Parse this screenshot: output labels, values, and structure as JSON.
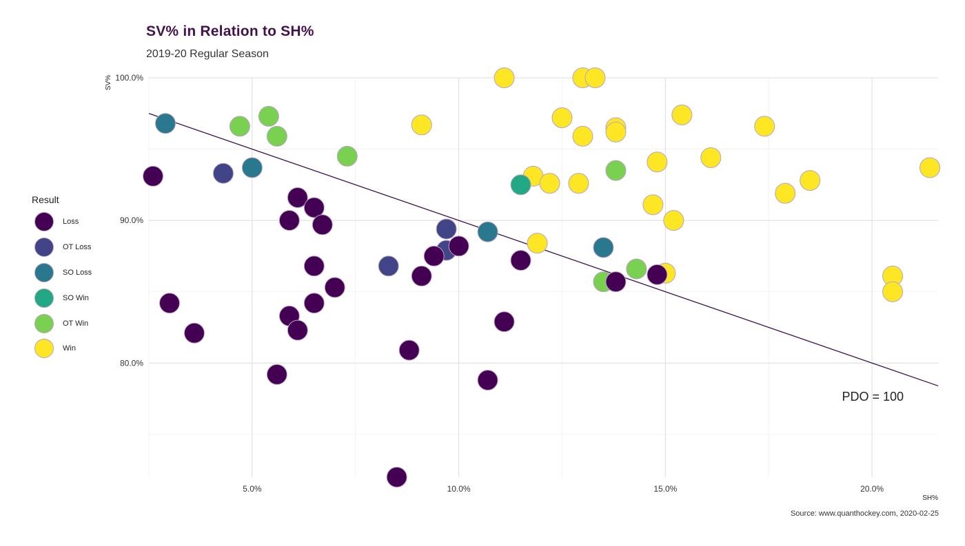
{
  "chart_data": {
    "type": "scatter",
    "title": "SV% in Relation to SH%",
    "subtitle": "2019-20 Regular Season",
    "xlabel": "SH%",
    "ylabel": "SV%",
    "source": "Source: www.quanthockey.com, 2020-02-25",
    "xlim": [
      2.5,
      21.6
    ],
    "ylim": [
      72.0,
      100.0
    ],
    "x_ticks": [
      5,
      10,
      15,
      20
    ],
    "x_tick_labels": [
      "5.0%",
      "10.0%",
      "15.0%",
      "20.0%"
    ],
    "y_ticks": [
      80,
      90,
      100
    ],
    "y_tick_labels": [
      "80.0%",
      "90.0%",
      "100.0%"
    ],
    "grid": true,
    "legend": {
      "title": "Result",
      "placement": "left",
      "entries": [
        {
          "name": "Loss",
          "color": "#440154"
        },
        {
          "name": "OT Loss",
          "color": "#414487"
        },
        {
          "name": "SO Loss",
          "color": "#2a788e"
        },
        {
          "name": "SO Win",
          "color": "#22a884"
        },
        {
          "name": "OT Win",
          "color": "#7ad151"
        },
        {
          "name": "Win",
          "color": "#fde725"
        }
      ]
    },
    "reference_line": {
      "label": "PDO = 100",
      "slope": -1,
      "intercept": 100,
      "color": "#3b0f4f"
    },
    "series": [
      {
        "name": "Loss",
        "color": "#440154",
        "points": [
          [
            2.6,
            93.1
          ],
          [
            3.0,
            84.2
          ],
          [
            3.6,
            82.1
          ],
          [
            5.6,
            79.2
          ],
          [
            5.9,
            90.0
          ],
          [
            5.9,
            83.3
          ],
          [
            6.1,
            91.6
          ],
          [
            6.1,
            82.3
          ],
          [
            6.5,
            90.9
          ],
          [
            6.7,
            89.7
          ],
          [
            6.5,
            86.8
          ],
          [
            6.5,
            84.2
          ],
          [
            7.0,
            85.3
          ],
          [
            8.5,
            72.0
          ],
          [
            8.8,
            80.9
          ],
          [
            9.1,
            86.1
          ],
          [
            9.4,
            87.5
          ],
          [
            10.0,
            88.2
          ],
          [
            10.7,
            78.8
          ],
          [
            11.1,
            82.9
          ],
          [
            11.5,
            87.2
          ],
          [
            13.8,
            85.7
          ],
          [
            14.8,
            86.2
          ]
        ]
      },
      {
        "name": "OT Loss",
        "color": "#414487",
        "points": [
          [
            4.3,
            93.3
          ],
          [
            8.3,
            86.8
          ],
          [
            9.7,
            89.4
          ],
          [
            9.7,
            87.9
          ]
        ]
      },
      {
        "name": "SO Loss",
        "color": "#2a788e",
        "points": [
          [
            2.9,
            96.8
          ],
          [
            5.0,
            93.7
          ],
          [
            10.7,
            89.2
          ],
          [
            13.5,
            88.1
          ]
        ]
      },
      {
        "name": "SO Win",
        "color": "#22a884",
        "points": [
          [
            11.5,
            92.5
          ]
        ]
      },
      {
        "name": "OT Win",
        "color": "#7ad151",
        "points": [
          [
            4.7,
            96.6
          ],
          [
            5.4,
            97.3
          ],
          [
            5.6,
            95.9
          ],
          [
            7.3,
            94.5
          ],
          [
            13.8,
            93.5
          ],
          [
            14.3,
            86.6
          ],
          [
            13.5,
            85.7
          ]
        ]
      },
      {
        "name": "Win",
        "color": "#fde725",
        "points": [
          [
            9.1,
            96.7
          ],
          [
            11.1,
            100.0
          ],
          [
            13.0,
            100.0
          ],
          [
            13.3,
            100.0
          ],
          [
            12.5,
            97.2
          ],
          [
            13.0,
            95.9
          ],
          [
            13.8,
            96.5
          ],
          [
            13.8,
            96.2
          ],
          [
            15.4,
            97.4
          ],
          [
            17.4,
            96.6
          ],
          [
            14.8,
            94.1
          ],
          [
            16.1,
            94.4
          ],
          [
            11.8,
            93.1
          ],
          [
            12.2,
            92.6
          ],
          [
            12.9,
            92.6
          ],
          [
            14.7,
            91.1
          ],
          [
            15.2,
            90.0
          ],
          [
            17.9,
            91.9
          ],
          [
            18.5,
            92.8
          ],
          [
            21.4,
            93.7
          ],
          [
            11.9,
            88.4
          ],
          [
            15.0,
            86.3
          ],
          [
            20.5,
            86.1
          ],
          [
            20.5,
            85.0
          ]
        ]
      }
    ]
  }
}
